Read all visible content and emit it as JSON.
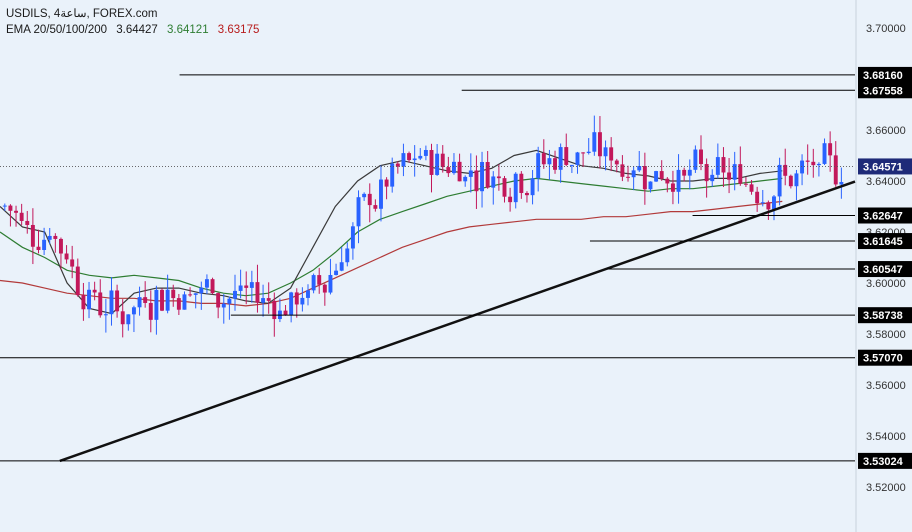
{
  "header": {
    "symbol_line": "USDILS, 4ساعة, FOREX.com",
    "ema_label": "EMA 20/50/100/200",
    "ema_values": [
      "3.64427",
      "3.64121",
      "3.63175"
    ],
    "ema_colors": [
      "#1a1a1a",
      "#2e7d32",
      "#b71c1c"
    ]
  },
  "colors": {
    "background": "#eaf2fa",
    "bullish": "#2962ff",
    "bearish": "#c2185b",
    "ema20": "#3a3a3a",
    "ema50": "#2e7d32",
    "ema200": "#b23a3a",
    "level_line": "#000000",
    "trendline": "#111111"
  },
  "chart_data": {
    "type": "candlestick",
    "symbol": "USDILS",
    "timeframe": "4H",
    "ylim": [
      3.51,
      3.72
    ],
    "y_ticks": [
      "3.52000",
      "3.54000",
      "3.56000",
      "3.58000",
      "3.60000",
      "3.62000",
      "3.64000",
      "3.66000",
      "3.68000",
      "3.70000"
    ],
    "current_price": "3.64571",
    "levels": [
      {
        "label": "3.68160",
        "value": 3.6816,
        "start": 0.21
      },
      {
        "label": "3.67558",
        "value": 3.67558,
        "start": 0.54
      },
      {
        "label": "3.62647",
        "value": 3.62647,
        "start": 0.81
      },
      {
        "label": "3.61645",
        "value": 3.61645,
        "start": 0.69
      },
      {
        "label": "3.60547",
        "value": 3.60547,
        "start": 0.71
      },
      {
        "label": "3.58738",
        "value": 3.58738,
        "start": 0.27
      },
      {
        "label": "3.57070",
        "value": 3.5707,
        "start": 0.0
      },
      {
        "label": "3.53024",
        "value": 3.53024,
        "start": 0.0
      }
    ],
    "trendline": {
      "from": {
        "t": 0.07,
        "price": 3.53024
      },
      "to": {
        "t": 1.0,
        "price": 3.6398
      }
    },
    "ema20": [
      3.63,
      3.622,
      3.62,
      3.6,
      3.59,
      3.588,
      3.596,
      3.598,
      3.598,
      3.596,
      3.595,
      3.593,
      3.592,
      3.598,
      3.614,
      3.63,
      3.64,
      3.646,
      3.648,
      3.646,
      3.644,
      3.643,
      3.645,
      3.65,
      3.652,
      3.649,
      3.646,
      3.645,
      3.643,
      3.642,
      3.64,
      3.64,
      3.641,
      3.641,
      3.643,
      3.644
    ],
    "ema50": [
      3.62,
      3.614,
      3.61,
      3.605,
      3.603,
      3.602,
      3.603,
      3.602,
      3.601,
      3.598,
      3.596,
      3.595,
      3.596,
      3.6,
      3.605,
      3.612,
      3.62,
      3.625,
      3.628,
      3.631,
      3.634,
      3.636,
      3.638,
      3.64,
      3.641,
      3.64,
      3.639,
      3.638,
      3.637,
      3.636,
      3.637,
      3.637,
      3.638,
      3.639,
      3.64,
      3.641
    ],
    "ema200": [
      3.601,
      3.6,
      3.598,
      3.596,
      3.595,
      3.594,
      3.594,
      3.593,
      3.593,
      3.592,
      3.592,
      3.591,
      3.592,
      3.594,
      3.598,
      3.602,
      3.606,
      3.61,
      3.614,
      3.617,
      3.62,
      3.622,
      3.623,
      3.624,
      3.625,
      3.625,
      3.625,
      3.626,
      3.626,
      3.627,
      3.628,
      3.628,
      3.629,
      3.63,
      3.631,
      3.632
    ]
  }
}
